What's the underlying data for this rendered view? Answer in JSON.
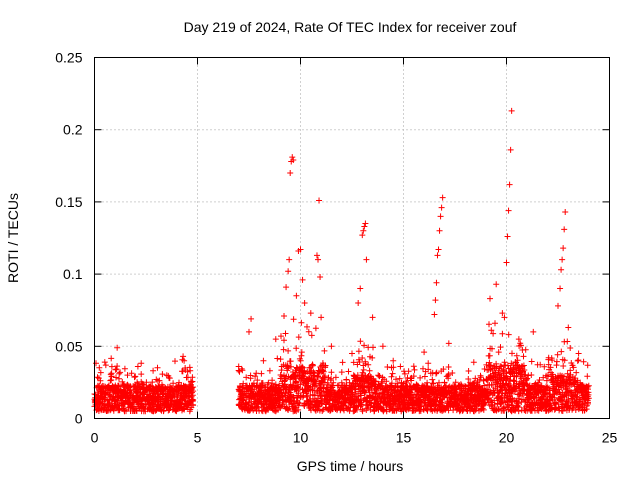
{
  "chart_data": {
    "type": "scatter",
    "title": "Day 219 of 2024, Rate Of TEC Index for receiver zouf",
    "xlabel": "GPS time / hours",
    "ylabel": "ROTI / TECUs",
    "xlim": [
      0,
      25
    ],
    "ylim": [
      0,
      0.25
    ],
    "xticks": [
      0,
      5,
      10,
      15,
      20,
      25
    ],
    "yticks": [
      0,
      0.05,
      0.1,
      0.15,
      0.2,
      0.25
    ],
    "xtick_labels": [
      "0",
      "5",
      "10",
      "15",
      "20",
      "25"
    ],
    "ytick_labels": [
      "0",
      "0.05",
      "0.1",
      "0.15",
      "0.2",
      "0.25"
    ],
    "grid": true,
    "marker": "+",
    "color": "#ff0000",
    "data_gap_hours": [
      4.8,
      7.0
    ],
    "series": [
      {
        "name": "ROTI",
        "points": [
          [
            0.2,
            0.012
          ],
          [
            0.5,
            0.039
          ],
          [
            0.55,
            0.037
          ],
          [
            1.1,
            0.049
          ],
          [
            1.2,
            0.031
          ],
          [
            2.1,
            0.024
          ],
          [
            3.0,
            0.027
          ],
          [
            4.3,
            0.043
          ],
          [
            4.35,
            0.04
          ],
          [
            4.4,
            0.035
          ],
          [
            7.0,
            0.036
          ],
          [
            7.5,
            0.06
          ],
          [
            7.6,
            0.069
          ],
          [
            8.2,
            0.04
          ],
          [
            8.8,
            0.055
          ],
          [
            9.2,
            0.071
          ],
          [
            9.3,
            0.091
          ],
          [
            9.4,
            0.102
          ],
          [
            9.45,
            0.11
          ],
          [
            9.5,
            0.17
          ],
          [
            9.55,
            0.178
          ],
          [
            9.6,
            0.181
          ],
          [
            9.65,
            0.179
          ],
          [
            9.8,
            0.085
          ],
          [
            9.9,
            0.116
          ],
          [
            10.0,
            0.117
          ],
          [
            10.1,
            0.096
          ],
          [
            10.2,
            0.08
          ],
          [
            10.5,
            0.073
          ],
          [
            10.8,
            0.113
          ],
          [
            10.85,
            0.11
          ],
          [
            10.9,
            0.151
          ],
          [
            10.95,
            0.098
          ],
          [
            11.0,
            0.07
          ],
          [
            11.5,
            0.05
          ],
          [
            12.5,
            0.045
          ],
          [
            12.8,
            0.08
          ],
          [
            12.9,
            0.09
          ],
          [
            13.0,
            0.127
          ],
          [
            13.05,
            0.13
          ],
          [
            13.1,
            0.133
          ],
          [
            13.15,
            0.135
          ],
          [
            13.2,
            0.11
          ],
          [
            13.5,
            0.07
          ],
          [
            14.0,
            0.05
          ],
          [
            14.5,
            0.04
          ],
          [
            16.0,
            0.046
          ],
          [
            16.5,
            0.072
          ],
          [
            16.55,
            0.082
          ],
          [
            16.6,
            0.094
          ],
          [
            16.65,
            0.113
          ],
          [
            16.7,
            0.117
          ],
          [
            16.75,
            0.13
          ],
          [
            16.8,
            0.14
          ],
          [
            16.85,
            0.146
          ],
          [
            16.9,
            0.153
          ],
          [
            17.2,
            0.052
          ],
          [
            19.2,
            0.083
          ],
          [
            19.5,
            0.093
          ],
          [
            19.8,
            0.073
          ],
          [
            19.9,
            0.07
          ],
          [
            20.0,
            0.108
          ],
          [
            20.05,
            0.126
          ],
          [
            20.1,
            0.144
          ],
          [
            20.15,
            0.162
          ],
          [
            20.2,
            0.186
          ],
          [
            20.25,
            0.213
          ],
          [
            20.6,
            0.055
          ],
          [
            21.3,
            0.06
          ],
          [
            22.5,
            0.078
          ],
          [
            22.6,
            0.09
          ],
          [
            22.65,
            0.103
          ],
          [
            22.7,
            0.11
          ],
          [
            22.75,
            0.118
          ],
          [
            22.8,
            0.131
          ],
          [
            22.85,
            0.143
          ],
          [
            23.0,
            0.063
          ],
          [
            23.5,
            0.045
          ]
        ]
      }
    ]
  }
}
